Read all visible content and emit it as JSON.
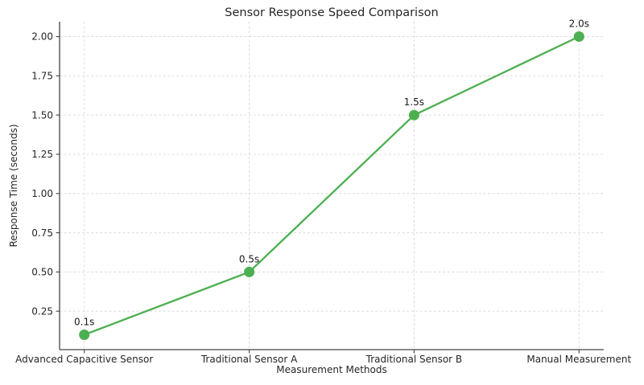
{
  "chart_data": {
    "type": "line",
    "title": "Sensor Response Speed Comparison",
    "xlabel": "Measurement Methods",
    "ylabel": "Response Time (seconds)",
    "categories": [
      "Advanced Capacitive Sensor",
      "Traditional Sensor A",
      "Traditional Sensor B",
      "Manual Measurement"
    ],
    "series": [
      {
        "name": "response-time",
        "values": [
          0.1,
          0.5,
          1.5,
          2.0
        ],
        "point_labels": [
          "0.1s",
          "0.5s",
          "1.5s",
          "2.0s"
        ]
      }
    ],
    "yticks": [
      0.25,
      0.5,
      0.75,
      1.0,
      1.25,
      1.5,
      1.75,
      2.0
    ],
    "ytick_labels": [
      "0.25",
      "0.50",
      "0.75",
      "1.00",
      "1.25",
      "1.50",
      "1.75",
      "2.00"
    ],
    "ylim": [
      0.005,
      2.095
    ],
    "xlim": [
      -0.15,
      3.15
    ],
    "grid": true,
    "legend_position": "none",
    "colors": {
      "line": "#4caf50",
      "marker": "#4caf50",
      "grid": "#dcdcdc",
      "axis": "#444444",
      "text": "#262626"
    }
  }
}
